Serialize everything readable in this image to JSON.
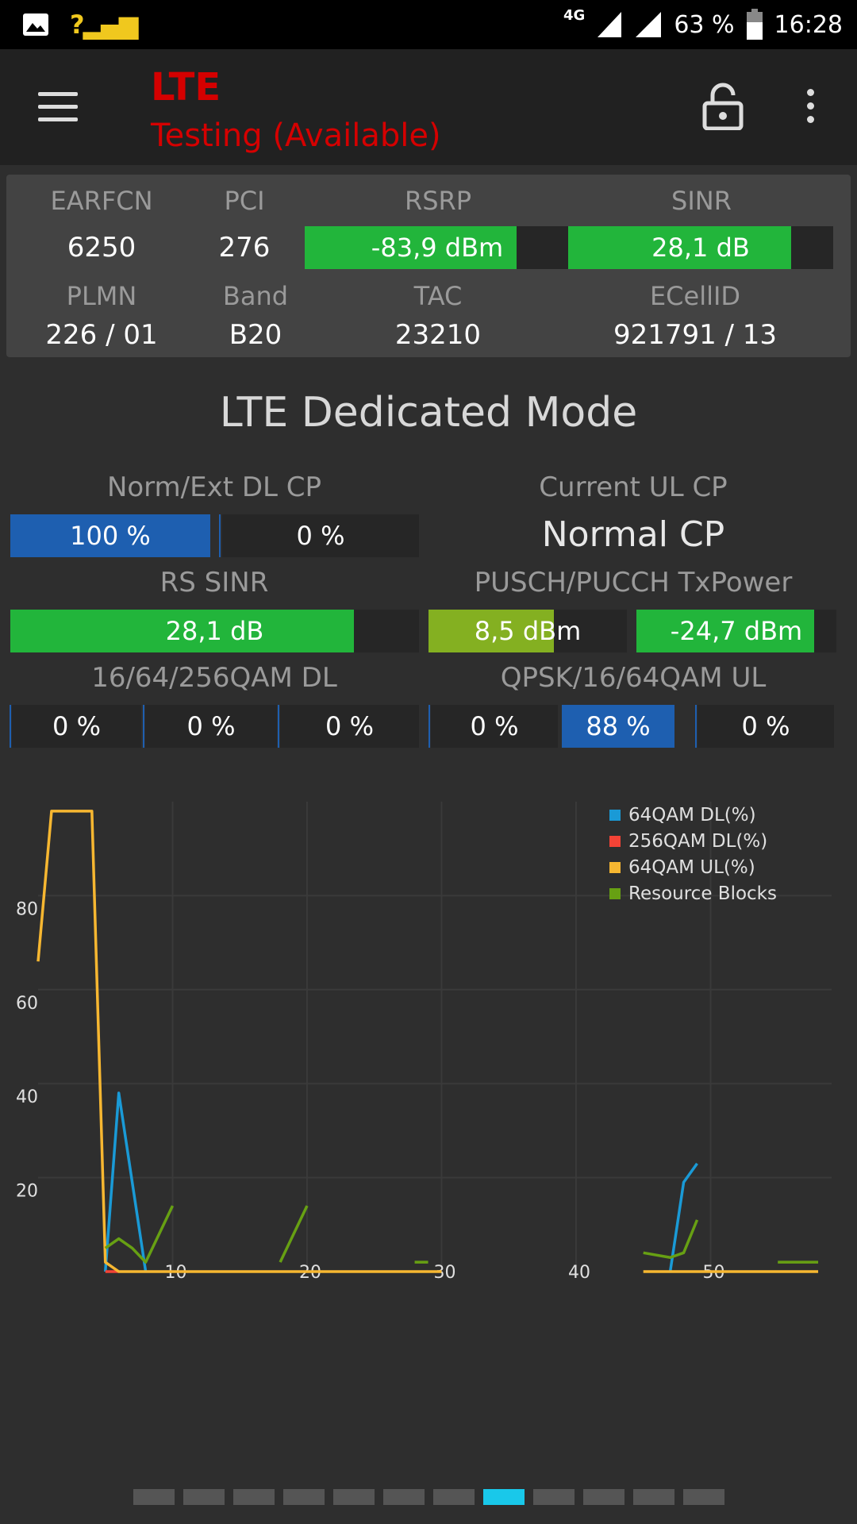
{
  "status_bar": {
    "battery": "63 %",
    "time": "16:28",
    "network": "4G",
    "signal": "?"
  },
  "toolbar": {
    "title": "LTE",
    "subtitle": "Testing (Available)"
  },
  "cell_info": {
    "earfcn": {
      "label": "EARFCN",
      "value": "6250"
    },
    "pci": {
      "label": "PCI",
      "value": "276"
    },
    "rsrp": {
      "label": "RSRP",
      "value": "-83,9 dBm",
      "fill_fraction": 0.8
    },
    "sinr": {
      "label": "SINR",
      "value": "28,1 dB",
      "fill_fraction": 0.84
    },
    "plmn": {
      "label": "PLMN",
      "value": "226 / 01"
    },
    "band": {
      "label": "Band",
      "value": "B20"
    },
    "tac": {
      "label": "TAC",
      "value": "23210"
    },
    "ecellid": {
      "label": "ECellID",
      "value": "921791 / 13"
    }
  },
  "mode": {
    "title": "LTE Dedicated Mode",
    "dl_cp": {
      "label": "Norm/Ext DL CP",
      "normal": "100 %",
      "extended": "0 %"
    },
    "ul_cp": {
      "label": "Current UL CP",
      "value": "Normal CP"
    },
    "rs_sinr": {
      "label": "RS SINR",
      "value": "28,1 dB",
      "fill_fraction": 0.84
    },
    "tx_power": {
      "label": "PUSCH/PUCCH TxPower",
      "pusch": {
        "value": "8,5 dBm",
        "fill_fraction": 0.63
      },
      "pucch": {
        "value": "-24,7 dBm",
        "fill_fraction": 0.89
      }
    },
    "qam_dl": {
      "label": "16/64/256QAM DL",
      "values": [
        "0 %",
        "0 %",
        "0 %"
      ]
    },
    "qam_ul": {
      "label": "QPSK/16/64QAM UL",
      "values": [
        "0 %",
        "88 %",
        "0 %"
      ]
    }
  },
  "chart_data": {
    "type": "line",
    "x_ticks": [
      "10",
      "20",
      "30",
      "40",
      "50"
    ],
    "y_ticks": [
      "20",
      "40",
      "60",
      "80"
    ],
    "xlim": [
      0,
      59
    ],
    "ylim": [
      0,
      100
    ],
    "grid": true,
    "legend_position": "top-right",
    "series": [
      {
        "name": "64QAM DL(%)",
        "color": "#1a9ad6",
        "segments": [
          [
            [
              5,
              0
            ],
            [
              6,
              38
            ],
            [
              8,
              0
            ]
          ],
          [
            [
              47,
              0
            ],
            [
              48,
              19
            ],
            [
              49,
              23
            ]
          ]
        ]
      },
      {
        "name": "256QAM DL(%)",
        "color": "#f44336",
        "segments": [
          [
            [
              5,
              0
            ],
            [
              6,
              0
            ]
          ]
        ]
      },
      {
        "name": "64QAM UL(%)",
        "color": "#f7b731",
        "segments": [
          [
            [
              0,
              66
            ],
            [
              1,
              98
            ],
            [
              4,
              98
            ],
            [
              5,
              2
            ],
            [
              6,
              0
            ],
            [
              30,
              0
            ]
          ],
          [
            [
              45,
              0
            ],
            [
              58,
              0
            ]
          ]
        ]
      },
      {
        "name": "Resource Blocks",
        "color": "#67a013",
        "segments": [
          [
            [
              5,
              5
            ],
            [
              6,
              7
            ],
            [
              7,
              5
            ],
            [
              8,
              2
            ],
            [
              10,
              14
            ]
          ],
          [
            [
              18,
              2
            ],
            [
              20,
              14
            ]
          ],
          [
            [
              28,
              2
            ],
            [
              29,
              2
            ]
          ],
          [
            [
              45,
              4
            ],
            [
              47,
              3
            ],
            [
              48,
              4
            ],
            [
              49,
              11
            ]
          ],
          [
            [
              55,
              2
            ],
            [
              58,
              2
            ]
          ]
        ]
      }
    ]
  },
  "pager": {
    "count": 12,
    "active_index": 7
  }
}
